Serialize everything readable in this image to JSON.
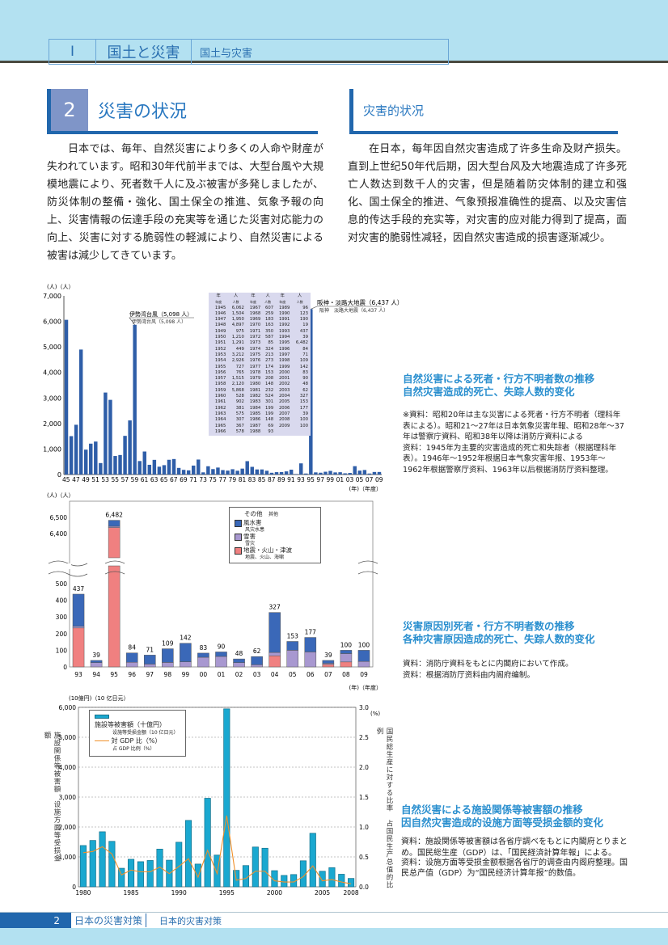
{
  "header": {
    "chapter_num": "I",
    "chapter_ja": "国土と災害",
    "chapter_zh": "国土与灾害"
  },
  "section": {
    "num": "2",
    "title_ja": "災害の状況",
    "title_zh": "灾害的状况"
  },
  "body_ja": "日本では、毎年、自然災害により多くの人命や財産が失われています。昭和30年代前半までは、大型台風や大規模地震により、死者数千人に及ぶ被害が多発しましたが、防災体制の整備・強化、国土保全の推進、気象予報の向上、災害情報の伝達手段の充実等を通じた災害対応能力の向上、災害に対する脆弱性の軽減により、自然災害による被害は減少してきています。",
  "body_zh": "在日本，每年因自然灾害造成了许多生命及财产损失。直到上世纪50年代后期，因大型台风及大地震造成了许多死亡人数达到数千人的灾害，但是随着防灾体制的建立和强化、国土保全的推进、气象预报准确性的提高、以及灾害信息的传达手段的充实等，对灾害的应对能力得到了提高，面对灾害的脆弱性减轻，因自然灾害造成的损害逐渐减少。",
  "chart_data": [
    {
      "type": "bar",
      "ylabel": "(人)（人）",
      "xlabel": "(年)（年度）",
      "ylim": [
        0,
        7000
      ],
      "yticks": [
        "0",
        "1,000",
        "2,000",
        "3,000",
        "4,000",
        "5,000",
        "6,000",
        "7,000"
      ],
      "annotations": [
        {
          "ja": "伊勢湾台風（5,098 人）",
          "zh": "伊勢湾台风（5,098 人）",
          "year": 1959
        },
        {
          "ja": "阪神・淡路大地震（6,437 人）",
          "zh": "阪神　淡路大地震（6,437 人）",
          "year": 1995
        }
      ],
      "table_header": [
        "年",
        "人",
        "年",
        "人",
        "年",
        "人"
      ],
      "table_subheader": [
        "年度",
        "人数",
        "年度",
        "人数",
        "年度",
        "人数"
      ],
      "x": [
        1945,
        1946,
        1947,
        1948,
        1949,
        1950,
        1951,
        1952,
        1953,
        1954,
        1955,
        1956,
        1957,
        1958,
        1959,
        1960,
        1961,
        1962,
        1963,
        1964,
        1965,
        1966,
        1967,
        1968,
        1969,
        1970,
        1971,
        1972,
        1973,
        1974,
        1975,
        1976,
        1977,
        1978,
        1979,
        1980,
        1981,
        1982,
        1983,
        1984,
        1985,
        1986,
        1987,
        1988,
        1989,
        1990,
        1991,
        1992,
        1993,
        1994,
        1995,
        1996,
        1997,
        1998,
        1999,
        2000,
        2001,
        2002,
        2003,
        2004,
        2005,
        2006,
        2007,
        2008,
        2009
      ],
      "values": [
        6062,
        1504,
        1950,
        4897,
        975,
        1210,
        1291,
        449,
        3212,
        2926,
        727,
        765,
        1515,
        2120,
        5868,
        528,
        902,
        381,
        575,
        307,
        367,
        578,
        607,
        259,
        183,
        163,
        350,
        587,
        85,
        324,
        213,
        273,
        174,
        153,
        208,
        148,
        232,
        524,
        301,
        199,
        199,
        148,
        69,
        93,
        96,
        123,
        190,
        19,
        437,
        39,
        6482,
        84,
        71,
        109,
        142,
        83,
        90,
        48,
        62,
        327,
        153,
        177,
        39,
        100,
        100
      ],
      "colors": {
        "bar": "#2f5ea8"
      }
    },
    {
      "type": "bar",
      "stacked": true,
      "ylabel": "(人)（人）",
      "xlabel": "(年)（年度）",
      "yticks": [
        "0",
        "100",
        "200",
        "300",
        "400",
        "500",
        "6,400",
        "6,500"
      ],
      "categories": [
        "93",
        "94",
        "95",
        "96",
        "97",
        "98",
        "99",
        "00",
        "01",
        "02",
        "03",
        "04",
        "05",
        "06",
        "07",
        "08",
        "09"
      ],
      "totals": [
        437,
        39,
        6482,
        84,
        71,
        109,
        142,
        83,
        90,
        48,
        62,
        327,
        153,
        177,
        39,
        100,
        100
      ],
      "legend_title": {
        "ja": "その他",
        "zh": "其他"
      },
      "series": [
        {
          "name": "地震・火山・津波",
          "name_zh": "地震、火山、海啸",
          "color": "#f08080",
          "values": [
            234,
            0,
            6437,
            0,
            0,
            0,
            0,
            0,
            0,
            0,
            0,
            67,
            0,
            0,
            15,
            30,
            0
          ]
        },
        {
          "name": "雪害",
          "name_zh": "雪灾",
          "color": "#a898d0",
          "values": [
            10,
            26,
            8,
            28,
            17,
            27,
            31,
            58,
            63,
            26,
            13,
            20,
            100,
            90,
            7,
            50,
            33
          ]
        },
        {
          "name": "風水害",
          "name_zh": "风灾水患",
          "color": "#3a68b8",
          "values": [
            193,
            13,
            37,
            56,
            54,
            82,
            111,
            25,
            27,
            22,
            49,
            240,
            53,
            87,
            17,
            20,
            67
          ]
        }
      ]
    },
    {
      "type": "bar+line",
      "ylabel_left": "(10億円)（10 亿日元）",
      "ylabel_left_vertical": "施設関係等被害額　设施方面等受损金额",
      "ylabel_right": "(%)",
      "ylabel_right_vertical": "国民総生産に対する比率　占国民生产总值的比例",
      "ylim": [
        0,
        6000
      ],
      "ylim_right": [
        0,
        3.0
      ],
      "yticks": [
        "0",
        "1,000",
        "2,000",
        "3,000",
        "4,000",
        "5,000",
        "6,000"
      ],
      "yticks_right": [
        "0.0",
        "0.5",
        "1.0",
        "1.5",
        "2.0",
        "2.5",
        "3.0"
      ],
      "xticks": [
        "1980",
        "1985",
        "1990",
        "1995",
        "2000",
        "2005",
        "2008"
      ],
      "x": [
        1980,
        1981,
        1982,
        1983,
        1984,
        1985,
        1986,
        1987,
        1988,
        1989,
        1990,
        1991,
        1992,
        1993,
        1994,
        1995,
        1996,
        1997,
        1998,
        1999,
        2000,
        2001,
        2002,
        2003,
        2004,
        2005,
        2006,
        2007,
        2008
      ],
      "series": [
        {
          "name": "施設等被害額（十億円）",
          "name_zh": "设施等受损金额（10 亿日元）",
          "color": "#1aa8d0",
          "values": [
            1380,
            1550,
            1840,
            1520,
            620,
            920,
            840,
            880,
            1260,
            890,
            1490,
            2220,
            760,
            2960,
            1060,
            5950,
            550,
            710,
            1330,
            1290,
            540,
            380,
            410,
            870,
            1790,
            520,
            640,
            420,
            280
          ]
        },
        {
          "name": "対 GDP 比（%）",
          "name_zh": "占 GDP 比例（%）",
          "color": "#f0902a",
          "axis": "right",
          "values": [
            0.57,
            0.59,
            0.67,
            0.55,
            0.2,
            0.28,
            0.25,
            0.25,
            0.33,
            0.22,
            0.34,
            0.47,
            0.16,
            0.61,
            0.22,
            1.19,
            0.11,
            0.14,
            0.26,
            0.26,
            0.1,
            0.08,
            0.08,
            0.17,
            0.35,
            0.1,
            0.12,
            0.08,
            0.05
          ]
        }
      ]
    }
  ],
  "captions": [
    {
      "ja": "自然災害による死者・行方不明者数の推移",
      "zh": "自然灾害造成的死亡、失踪人数的变化",
      "note_ja": "※資料：昭和20年は主な災害による死者・行方不明者（理科年表による）。昭和21～27年は日本気象災害年報、昭和28年～37年は警察庁資料、昭和38年以降は消防庁資料による",
      "note_zh": "资料：1945年为主要的灾害造成的死亡和失踪者（根据理科年表）。1946年～1952年根据日本气象灾害年报、1953年～1962年根据警察厅资料、1963年以后根据消防厅资料整理。"
    },
    {
      "ja": "災害原因別死者・行方不明者数の推移",
      "zh": "各种灾害原因造成的死亡、失踪人数的变化",
      "note_ja": "資料：消防庁資料をもとに内閣府において作成。",
      "note_zh": "资料：根据消防厅资料由内阁府编制。"
    },
    {
      "ja": "自然災害による施設関係等被害額の推移",
      "zh": "因自然灾害造成的设施方面等受损金额的变化",
      "note_ja": "資料：施設関係等被害額は各省庁調べをもとに内閣府とりまとめ。国民総生産（GDP）は、「国民経済計算年報」による。",
      "note_zh": "资料：设施方面等受损金额根据各省厅的调查由内阁府整理。国民总产值（GDP）为“国民经济计算年报”的数值。"
    }
  ],
  "footer": {
    "page": "2",
    "title_ja": "日本の災害対策",
    "title_zh": "日本的灾害对策"
  }
}
